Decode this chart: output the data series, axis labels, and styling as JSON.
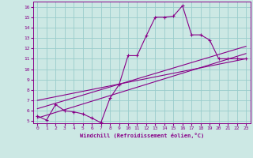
{
  "xlabel": "Windchill (Refroidissement éolien,°C)",
  "bg_color": "#cce8e4",
  "line_color": "#880088",
  "grid_color": "#99cccc",
  "xlim": [
    -0.5,
    23.5
  ],
  "ylim": [
    4.8,
    16.5
  ],
  "xticks": [
    0,
    1,
    2,
    3,
    4,
    5,
    6,
    7,
    8,
    9,
    10,
    11,
    12,
    13,
    14,
    15,
    16,
    17,
    18,
    19,
    20,
    21,
    22,
    23
  ],
  "yticks": [
    5,
    6,
    7,
    8,
    9,
    10,
    11,
    12,
    13,
    14,
    15,
    16
  ],
  "curve1_x": [
    0,
    1,
    2,
    3,
    4,
    5,
    6,
    7,
    8,
    9,
    10,
    11,
    12,
    13,
    14,
    15,
    16,
    17,
    18,
    19,
    20,
    21,
    22,
    23
  ],
  "curve1_y": [
    5.5,
    5.1,
    6.6,
    6.0,
    5.9,
    5.7,
    5.3,
    4.85,
    7.2,
    8.5,
    11.3,
    11.3,
    13.2,
    15.0,
    15.0,
    15.1,
    16.1,
    13.3,
    13.3,
    12.8,
    11.0,
    11.0,
    11.0,
    11.0
  ],
  "line1_x": [
    0,
    23
  ],
  "line1_y": [
    5.3,
    11.5
  ],
  "line2_x": [
    0,
    23
  ],
  "line2_y": [
    6.2,
    12.2
  ],
  "line3_x": [
    0,
    23
  ],
  "line3_y": [
    7.0,
    11.0
  ]
}
